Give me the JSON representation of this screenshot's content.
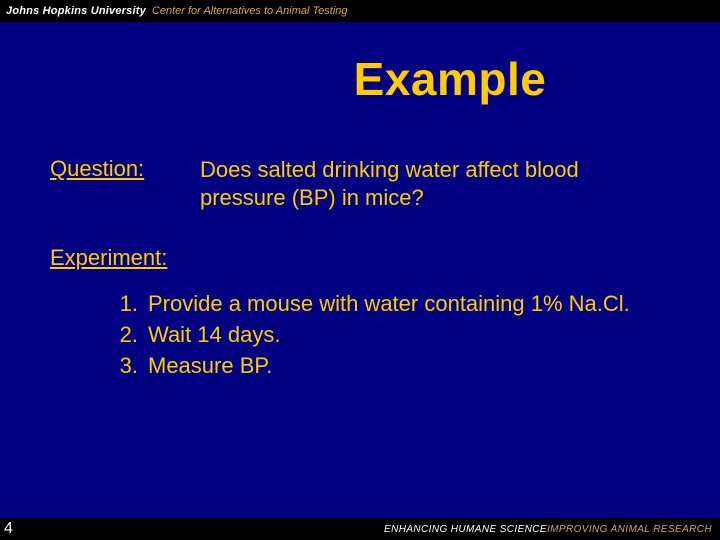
{
  "colors": {
    "background": "#000080",
    "bar": "#000000",
    "text": "#ffcc00",
    "header_white": "#ffffff",
    "header_gold": "#d6a84b"
  },
  "header": {
    "org": "Johns Hopkins University",
    "center": "Center for Alternatives to Animal Testing"
  },
  "title": "Example",
  "question": {
    "label": "Question:",
    "text": "Does salted drinking water affect blood pressure (BP) in mice?"
  },
  "experiment": {
    "label": "Experiment:",
    "steps": [
      {
        "n": "1.",
        "text": "Provide a mouse with water containing 1% Na.Cl."
      },
      {
        "n": "2.",
        "text": "Wait 14 days."
      },
      {
        "n": "3.",
        "text": "Measure BP."
      }
    ]
  },
  "footer": {
    "page": "4",
    "tag_white": "ENHANCING HUMANE SCIENCE",
    "tag_gold": "IMPROVING ANIMAL RESEARCH"
  }
}
